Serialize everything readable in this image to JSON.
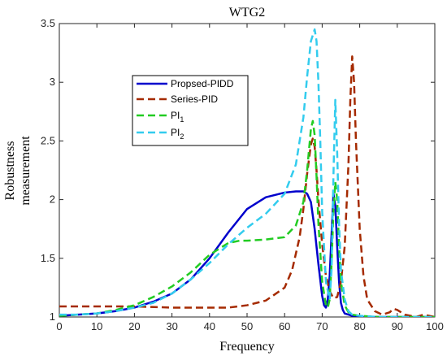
{
  "chart_data": {
    "type": "line",
    "title": "WTG2",
    "xlabel": "Frequency",
    "ylabel_lines": [
      "Robustness",
      "measurement"
    ],
    "xlim": [
      0,
      100
    ],
    "ylim": [
      1,
      3.5
    ],
    "xticks": [
      "0",
      "10",
      "20",
      "30",
      "40",
      "50",
      "60",
      "70",
      "80",
      "90",
      "100"
    ],
    "yticks": [
      "1",
      "1.5",
      "2",
      "2.5",
      "3",
      "3.5"
    ],
    "grid": false,
    "legend_position": "upper-left",
    "legend": {
      "s1": {
        "label": "Propsed-PIDD"
      },
      "s2": {
        "label": "Series-PID"
      },
      "s3": {
        "base": "PI",
        "sub": "1"
      },
      "s4": {
        "base": "PI",
        "sub": "2"
      }
    },
    "series": [
      {
        "key": "s1",
        "color": "#0000cc",
        "style": "solid",
        "x": [
          0,
          5,
          10,
          15,
          20,
          25,
          30,
          35,
          40,
          45,
          50,
          55,
          60,
          63,
          65,
          66,
          67,
          68,
          69,
          70,
          70.5,
          71,
          71.5,
          72,
          72.5,
          73,
          73.5,
          74,
          74.5,
          75,
          75.5,
          76,
          77,
          78,
          80,
          85,
          90,
          95,
          100
        ],
        "y": [
          1.01,
          1.02,
          1.03,
          1.05,
          1.08,
          1.13,
          1.2,
          1.32,
          1.5,
          1.72,
          1.92,
          2.02,
          2.06,
          2.07,
          2.07,
          2.05,
          1.98,
          1.75,
          1.45,
          1.18,
          1.1,
          1.08,
          1.15,
          1.35,
          1.7,
          2.05,
          1.95,
          1.6,
          1.3,
          1.12,
          1.06,
          1.03,
          1.02,
          1.01,
          1.0,
          1.0,
          1.0,
          1.0,
          1.0
        ]
      },
      {
        "key": "s2",
        "color": "#a52a00",
        "style": "dashed",
        "x": [
          0,
          10,
          20,
          30,
          40,
          45,
          50,
          55,
          60,
          62,
          64,
          65,
          66,
          67,
          67.5,
          68,
          68.5,
          69,
          70,
          71,
          72,
          73,
          74,
          75,
          76,
          77,
          77.5,
          78,
          78.5,
          79,
          80,
          81,
          82,
          84,
          86,
          88,
          89,
          90,
          92,
          95,
          97,
          100
        ],
        "y": [
          1.09,
          1.09,
          1.09,
          1.08,
          1.08,
          1.08,
          1.1,
          1.14,
          1.25,
          1.4,
          1.68,
          1.92,
          2.22,
          2.47,
          2.52,
          2.45,
          2.25,
          2.0,
          1.62,
          1.35,
          1.22,
          1.16,
          1.17,
          1.3,
          1.6,
          2.3,
          2.85,
          3.22,
          3.0,
          2.5,
          1.75,
          1.35,
          1.15,
          1.05,
          1.02,
          1.04,
          1.07,
          1.06,
          1.02,
          1.0,
          1.02,
          1.0
        ]
      },
      {
        "key": "s3",
        "color": "#22cc22",
        "style": "dashed",
        "x": [
          0,
          5,
          10,
          15,
          20,
          25,
          30,
          35,
          40,
          45,
          48,
          50,
          55,
          60,
          63,
          65,
          66,
          67,
          67.5,
          68,
          68.5,
          69,
          70,
          71,
          71.5,
          72,
          72.5,
          73,
          73.5,
          74,
          74.5,
          75,
          76,
          77,
          78,
          80,
          85,
          90,
          95,
          100
        ],
        "y": [
          1.01,
          1.02,
          1.03,
          1.06,
          1.1,
          1.17,
          1.26,
          1.38,
          1.53,
          1.63,
          1.65,
          1.65,
          1.66,
          1.68,
          1.78,
          1.98,
          2.25,
          2.6,
          2.67,
          2.55,
          2.2,
          1.8,
          1.3,
          1.1,
          1.08,
          1.15,
          1.45,
          1.9,
          2.15,
          2.0,
          1.6,
          1.3,
          1.1,
          1.04,
          1.02,
          1.01,
          1.0,
          1.0,
          1.0,
          1.0
        ]
      },
      {
        "key": "s4",
        "color": "#33ccee",
        "style": "dashed",
        "x": [
          0,
          5,
          10,
          15,
          20,
          25,
          30,
          35,
          40,
          45,
          50,
          55,
          60,
          63,
          65,
          66,
          67,
          68,
          68.5,
          69,
          69.5,
          70,
          71,
          72,
          72.5,
          73,
          73.5,
          74,
          74.5,
          75,
          76,
          77,
          78,
          80,
          85,
          90,
          95,
          100
        ],
        "y": [
          1.02,
          1.02,
          1.03,
          1.05,
          1.08,
          1.12,
          1.2,
          1.32,
          1.46,
          1.62,
          1.76,
          1.88,
          2.05,
          2.3,
          2.7,
          3.05,
          3.35,
          3.45,
          3.35,
          3.0,
          2.5,
          1.9,
          1.3,
          1.15,
          1.4,
          2.2,
          2.85,
          2.4,
          1.8,
          1.4,
          1.15,
          1.05,
          1.02,
          1.01,
          1.0,
          1.0,
          1.0,
          1.0
        ]
      }
    ]
  }
}
